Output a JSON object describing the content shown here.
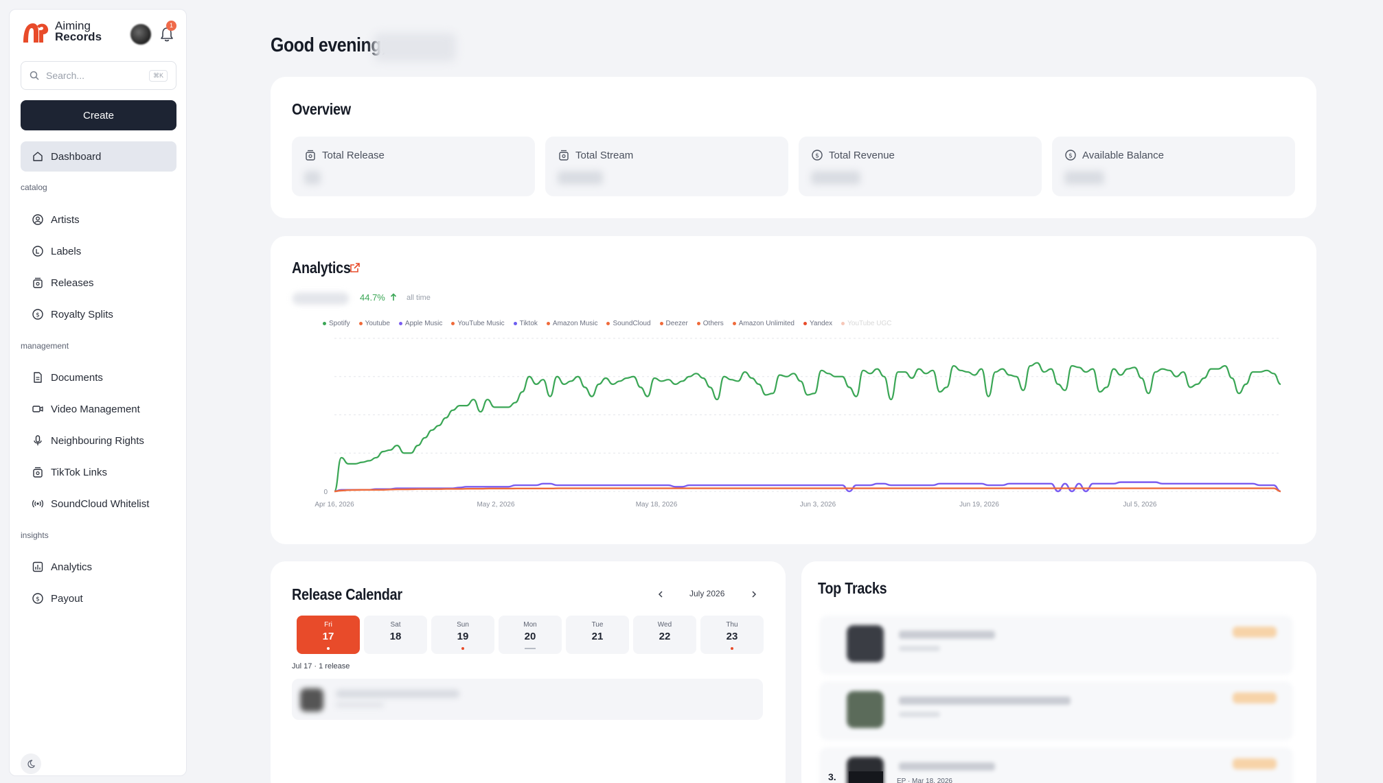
{
  "brand": {
    "line1": "Aiming",
    "line2": "Records"
  },
  "notifications": {
    "count": "1"
  },
  "search": {
    "placeholder": "Search...",
    "shortcut": "⌘K"
  },
  "create_label": "Create",
  "nav": {
    "dashboard": "Dashboard",
    "sections": {
      "catalog": "catalog",
      "management": "management",
      "insights": "insights"
    },
    "artists": "Artists",
    "labels": "Labels",
    "releases": "Releases",
    "royalty_splits": "Royalty Splits",
    "documents": "Documents",
    "video_management": "Video Management",
    "neighbouring_rights": "Neighbouring Rights",
    "tiktok_links": "TikTok Links",
    "soundcloud_whitelist": "SoundCloud Whitelist",
    "analytics": "Analytics",
    "payout": "Payout"
  },
  "greeting": "Good evening,",
  "overview": {
    "title": "Overview",
    "stats": {
      "total_release": "Total Release",
      "total_stream": "Total Stream",
      "total_revenue": "Total Revenue",
      "available_balance": "Available Balance"
    }
  },
  "analytics": {
    "title": "Analytics",
    "change": "44.7%",
    "period": "all time",
    "legend": [
      {
        "name": "Spotify",
        "color": "#3aa655"
      },
      {
        "name": "Youtube",
        "color": "#ef6a3a"
      },
      {
        "name": "Apple Music",
        "color": "#7a5cf0"
      },
      {
        "name": "YouTube Music",
        "color": "#ef6a3a"
      },
      {
        "name": "Tiktok",
        "color": "#6b5cf0"
      },
      {
        "name": "Amazon Music",
        "color": "#ef6a3a"
      },
      {
        "name": "SoundCloud",
        "color": "#ef6a3a"
      },
      {
        "name": "Deezer",
        "color": "#ef6a3a"
      },
      {
        "name": "Others",
        "color": "#ef6a3a"
      },
      {
        "name": "Amazon Unlimited",
        "color": "#ef6a3a"
      },
      {
        "name": "Yandex",
        "color": "#e84b2a"
      },
      {
        "name": "YouTube UGC",
        "color": "#f6c7b8"
      }
    ]
  },
  "chart_data": {
    "type": "line",
    "x_ticks": [
      "Apr 16, 2026",
      "May 2, 2026",
      "May 18, 2026",
      "Jun 3, 2026",
      "Jun 19, 2026",
      "Jul 5, 2026"
    ],
    "y_zero_label": "0",
    "ylim": [
      0,
      100
    ],
    "grid": true,
    "legend_position": "top-left",
    "series": [
      {
        "name": "Spotify",
        "color": "#3aa655",
        "values": [
          0,
          22,
          18,
          18,
          19,
          20,
          22,
          26,
          27,
          30,
          25,
          25,
          30,
          35,
          40,
          43,
          48,
          53,
          56,
          56,
          60,
          52,
          60,
          55,
          55,
          55,
          58,
          65,
          75,
          70,
          73,
          62,
          75,
          70,
          72,
          75,
          68,
          62,
          70,
          74,
          70,
          72,
          74,
          75,
          68,
          62,
          74,
          72,
          73,
          70,
          72,
          75,
          77,
          74,
          68,
          60,
          75,
          73,
          72,
          78,
          74,
          70,
          63,
          64,
          76,
          75,
          77,
          72,
          63,
          64,
          79,
          77,
          75,
          75,
          68,
          62,
          79,
          77,
          80,
          75,
          60,
          78,
          78,
          74,
          80,
          77,
          79,
          65,
          68,
          82,
          79,
          78,
          76,
          80,
          62,
          78,
          80,
          76,
          75,
          66,
          82,
          84,
          78,
          80,
          70,
          66,
          82,
          81,
          78,
          80,
          65,
          68,
          80,
          76,
          80,
          81,
          74,
          64,
          78,
          80,
          79,
          75,
          78,
          68,
          70,
          74,
          80,
          80,
          82,
          74,
          64,
          70,
          78,
          78,
          79,
          77,
          70
        ]
      },
      {
        "name": "Apple Music",
        "color": "#7a5cf0",
        "values": [
          0,
          1,
          1,
          1,
          1,
          1,
          1.5,
          1.5,
          1.5,
          2,
          2,
          2,
          2,
          2,
          2,
          2,
          2,
          2,
          2.5,
          3,
          3,
          3,
          3,
          3,
          3,
          3,
          4,
          4,
          4,
          4,
          5,
          5,
          4,
          4,
          4,
          4,
          4,
          4,
          4,
          4,
          4,
          4,
          4,
          4,
          4,
          4,
          4,
          4,
          4,
          3,
          3,
          4,
          4,
          4,
          4,
          4,
          4,
          4,
          4,
          4,
          4,
          4,
          4,
          4,
          4,
          4,
          4,
          4,
          4,
          4,
          4,
          4,
          4,
          4,
          0,
          4,
          4,
          4,
          5,
          5,
          4,
          4,
          4,
          4,
          4,
          4,
          4,
          5,
          5,
          5,
          5,
          5,
          5,
          5,
          4,
          4,
          4,
          5,
          5,
          5,
          5,
          5,
          5,
          5,
          0,
          5,
          0,
          5,
          0,
          5,
          5,
          5,
          5,
          6,
          6,
          6,
          6,
          6,
          6,
          5,
          5,
          5,
          5,
          5,
          5,
          5,
          5,
          5,
          5,
          5,
          5,
          5,
          5,
          4,
          4,
          4,
          0
        ]
      },
      {
        "name": "Youtube",
        "color": "#ef6a3a",
        "values": [
          0,
          0.5,
          0.8,
          0.9,
          1,
          1,
          1,
          1,
          1.2,
          1.3,
          1.3,
          1.4,
          1.5,
          1.5,
          1.5,
          1.5,
          1.6,
          1.6,
          1.6,
          1.7,
          1.7,
          1.7,
          1.8,
          1.8,
          1.8,
          1.8,
          1.9,
          1.9,
          1.9,
          1.9,
          1.9,
          1.9,
          2,
          2,
          2,
          2,
          2,
          2,
          2,
          2,
          2,
          2,
          2,
          2,
          2,
          2,
          2,
          2,
          2,
          2,
          2,
          2,
          2,
          2,
          2,
          2,
          2,
          2,
          2,
          2,
          2,
          2,
          2,
          2,
          2,
          2,
          2,
          2,
          2,
          2,
          2,
          2,
          2,
          2,
          2,
          2,
          2,
          2,
          2,
          2,
          2,
          2,
          2,
          2,
          2,
          2,
          2,
          2,
          2,
          2,
          2,
          2,
          2,
          2,
          2,
          2,
          2,
          2,
          2,
          2,
          2,
          2,
          2,
          2,
          2,
          2,
          2,
          2,
          2,
          2,
          2,
          2,
          2,
          2,
          2,
          2,
          2,
          2,
          2,
          2,
          2,
          2,
          2,
          2,
          2,
          2,
          2,
          2,
          2,
          2,
          2,
          2,
          2,
          2,
          2,
          0
        ]
      }
    ]
  },
  "calendar": {
    "title": "Release Calendar",
    "month": "July 2026",
    "days": [
      {
        "name": "Fri",
        "date": "17"
      },
      {
        "name": "Sat",
        "date": "18"
      },
      {
        "name": "Sun",
        "date": "19"
      },
      {
        "name": "Mon",
        "date": "20"
      },
      {
        "name": "Tue",
        "date": "21"
      },
      {
        "name": "Wed",
        "date": "22"
      },
      {
        "name": "Thu",
        "date": "23"
      }
    ],
    "summary": "Jul 17 · 1 release"
  },
  "top_tracks": {
    "title": "Top Tracks",
    "partial_rank": "3.",
    "partial_date": "EP · Mar 18, 2026"
  }
}
